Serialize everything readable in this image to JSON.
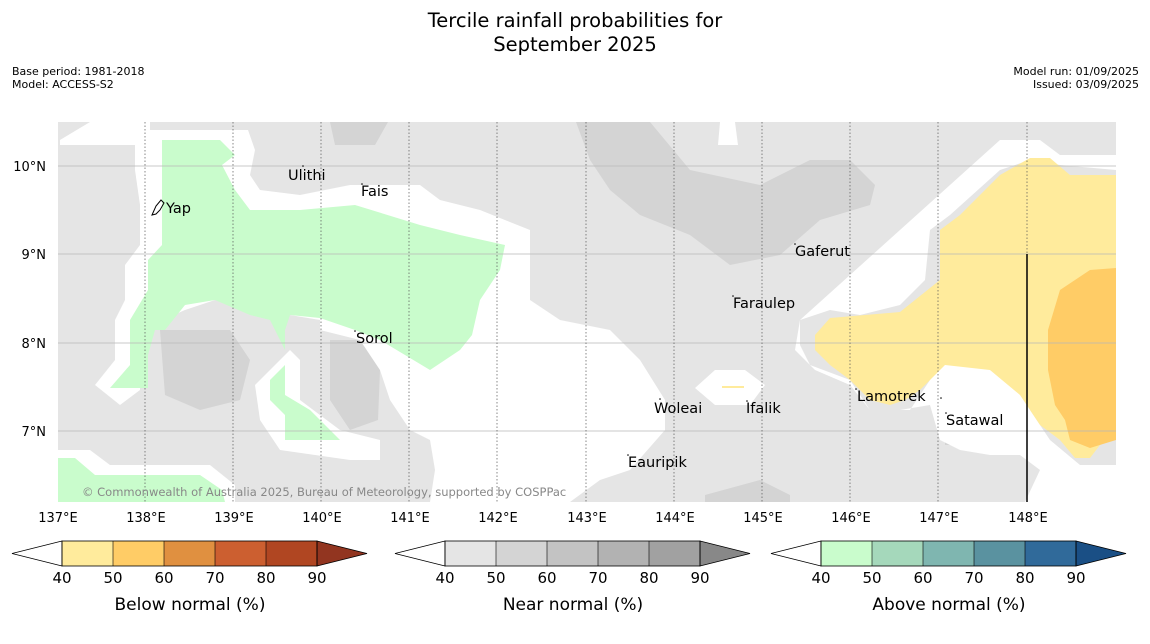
{
  "title_line1": "Tercile rainfall probabilities for",
  "title_line2": "September 2025",
  "meta_left": [
    "Base period: 1981-2018",
    "Model: ACCESS-S2"
  ],
  "meta_right": [
    "Model run: 01/09/2025",
    "Issued: 03/09/2025"
  ],
  "map": {
    "lon_labels": [
      "137°E",
      "138°E",
      "139°E",
      "140°E",
      "141°E",
      "142°E",
      "143°E",
      "144°E",
      "145°E",
      "146°E",
      "147°E",
      "148°E"
    ],
    "lat_labels": [
      "10°N",
      "9°N",
      "8°N",
      "7°N"
    ],
    "places": [
      "Yap",
      "Ulithi",
      "Fais",
      "Gaferut",
      "Faraulep",
      "Sorol",
      "Lamotrek",
      "Woleai",
      "Ifalik",
      "Satawal",
      "Eauripik"
    ],
    "copyright": "© Commonwealth of Australia 2025, Bureau of Meteorology, supported by COSPPac"
  },
  "colorbars": [
    {
      "label": "Below normal (%)",
      "ticks": [
        "40",
        "50",
        "60",
        "70",
        "80",
        "90"
      ],
      "colors": [
        "#ffffff",
        "#ffeb9c",
        "#ffcc66",
        "#e09040",
        "#cc5f30",
        "#b04622",
        "#923520"
      ]
    },
    {
      "label": "Near normal (%)",
      "ticks": [
        "40",
        "50",
        "60",
        "70",
        "80",
        "90"
      ],
      "colors": [
        "#ffffff",
        "#e5e5e5",
        "#d4d4d4",
        "#c3c3c3",
        "#b2b2b2",
        "#a1a1a1",
        "#888888"
      ]
    },
    {
      "label": "Above normal (%)",
      "ticks": [
        "40",
        "50",
        "60",
        "70",
        "80",
        "90"
      ],
      "colors": [
        "#ffffff",
        "#c9fccc",
        "#a5d8bb",
        "#7fb6b0",
        "#5a92a0",
        "#306a9a",
        "#1a4f85"
      ]
    }
  ]
}
